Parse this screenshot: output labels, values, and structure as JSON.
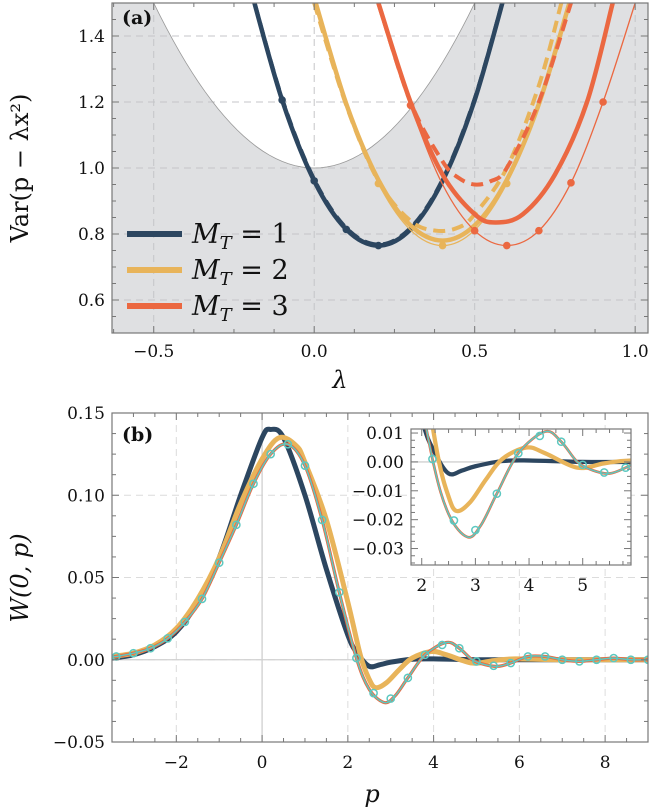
{
  "colors": {
    "mt1": "#2c4660",
    "mt2": "#e8b45a",
    "mt3": "#eb6841",
    "teal": "#5cc8c0",
    "region": "#dfe0e2"
  },
  "chart_data": [
    {
      "panel_label": "(a)",
      "type": "line",
      "xlabel": "λ",
      "ylabel": "Var(p − λx²)",
      "xlim": [
        -0.63,
        1.04
      ],
      "ylim": [
        0.5,
        1.5
      ],
      "xticks": [
        -0.5,
        0.0,
        0.5,
        1.0
      ],
      "xtick_labels": [
        "−0.5",
        "0.0",
        "0.5",
        "1.0"
      ],
      "yticks": [
        0.6,
        0.8,
        1.0,
        1.2,
        1.4
      ],
      "ytick_labels": [
        "0.6",
        "0.8",
        "1.0",
        "1.2",
        "1.4"
      ],
      "grid": true,
      "legend": {
        "placement": "left",
        "entries": [
          {
            "label": "M",
            "sub": "T",
            "rest": " = 1",
            "color_key": "mt1"
          },
          {
            "label": "M",
            "sub": "T",
            "rest": " = 2",
            "color_key": "mt2"
          },
          {
            "label": "M",
            "sub": "T",
            "rest": " = 3",
            "color_key": "mt3"
          }
        ]
      },
      "shaded_region_boundary": {
        "x": [
          -0.5,
          -0.4,
          -0.3,
          -0.2,
          -0.1,
          0,
          0.1,
          0.2,
          0.3,
          0.4,
          0.5
        ],
        "y": [
          1.5,
          1.32,
          1.18,
          1.08,
          1.02,
          1.0,
          1.02,
          1.08,
          1.18,
          1.32,
          1.5
        ]
      },
      "series": [
        {
          "color_key": "mt1",
          "style": "thick",
          "x": [
            -0.2,
            -0.1,
            0,
            0.1,
            0.2,
            0.3,
            0.4,
            0.5,
            0.6
          ],
          "y": [
            1.549,
            1.206,
            0.961,
            0.814,
            0.765,
            0.814,
            0.961,
            1.206,
            1.549
          ]
        },
        {
          "color_key": "mt1",
          "style": "dashed",
          "x": [
            -0.2,
            -0.1,
            0,
            0.1,
            0.2,
            0.3,
            0.4,
            0.5,
            0.6
          ],
          "y": [
            1.55,
            1.21,
            0.965,
            0.818,
            0.768,
            0.818,
            0.965,
            1.21,
            1.55
          ]
        },
        {
          "color_key": "mt1",
          "style": "thin-dots",
          "x": [
            -0.2,
            -0.1,
            0,
            0.1,
            0.2,
            0.3,
            0.4,
            0.5,
            0.6
          ],
          "y": [
            1.549,
            1.206,
            0.961,
            0.814,
            0.765,
            0.814,
            0.961,
            1.206,
            1.549
          ],
          "markers_x": [
            -0.1,
            0,
            0.1,
            0.2
          ]
        },
        {
          "color_key": "mt2",
          "style": "thick",
          "x": [
            0,
            0.1,
            0.2,
            0.3,
            0.4,
            0.5,
            0.6,
            0.7,
            0.8
          ],
          "y": [
            1.516,
            1.194,
            0.964,
            0.826,
            0.78,
            0.826,
            0.964,
            1.194,
            1.516
          ]
        },
        {
          "color_key": "mt2",
          "style": "dashed",
          "x": [
            0,
            0.1,
            0.2,
            0.3,
            0.38,
            0.45,
            0.5,
            0.6,
            0.7,
            0.77
          ],
          "y": [
            1.5,
            1.19,
            0.96,
            0.84,
            0.81,
            0.82,
            0.86,
            1.0,
            1.25,
            1.5
          ]
        },
        {
          "color_key": "mt2",
          "style": "thin-dots",
          "x": [
            0,
            0.1,
            0.2,
            0.3,
            0.4,
            0.5,
            0.6,
            0.7,
            0.8
          ],
          "y": [
            1.517,
            1.188,
            0.953,
            0.812,
            0.765,
            0.812,
            0.953,
            1.188,
            1.517
          ],
          "markers_x": [
            0.2,
            0.4,
            0.6
          ]
        },
        {
          "color_key": "mt3",
          "style": "thick",
          "x": [
            0.2,
            0.3,
            0.4,
            0.5,
            0.565,
            0.65,
            0.75,
            0.85,
            0.93
          ],
          "y": [
            1.5,
            1.2,
            0.98,
            0.86,
            0.835,
            0.86,
            0.98,
            1.2,
            1.5
          ]
        },
        {
          "color_key": "mt3",
          "style": "dashed",
          "x": [
            0.2,
            0.3,
            0.4,
            0.45,
            0.5,
            0.55,
            0.6,
            0.7,
            0.8
          ],
          "y": [
            1.5,
            1.2,
            1.02,
            0.97,
            0.95,
            0.96,
            1.0,
            1.2,
            1.5
          ]
        },
        {
          "color_key": "mt3",
          "style": "thin-dots",
          "x": [
            0.2,
            0.3,
            0.4,
            0.5,
            0.6,
            0.7,
            0.8,
            0.9,
            1.0
          ],
          "y": [
            1.485,
            1.19,
            0.95,
            0.81,
            0.765,
            0.81,
            0.955,
            1.2,
            1.5
          ],
          "markers_x": [
            0.3,
            0.5,
            0.6,
            0.7,
            0.8,
            0.9
          ]
        }
      ]
    },
    {
      "panel_label": "(b)",
      "type": "line",
      "xlabel": "p",
      "ylabel": "W(0, p)",
      "xlim": [
        -3.5,
        9.0
      ],
      "ylim": [
        -0.05,
        0.15
      ],
      "xticks": [
        -2,
        0,
        2,
        4,
        6,
        8
      ],
      "xtick_labels": [
        "−2",
        "0",
        "2",
        "4",
        "6",
        "8"
      ],
      "yticks": [
        -0.05,
        0.0,
        0.05,
        0.1,
        0.15
      ],
      "ytick_labels": [
        "−0.05",
        "0.00",
        "0.05",
        "0.10",
        "0.15"
      ],
      "grid": true,
      "series": [
        {
          "color_key": "mt1",
          "style": "thick",
          "x": [
            -3.5,
            -3,
            -2.5,
            -2,
            -1.5,
            -1,
            -0.5,
            0,
            0.2,
            0.5,
            1,
            1.5,
            2,
            2.25,
            2.5,
            2.75,
            3,
            3.5,
            4,
            5,
            6,
            7,
            8,
            9
          ],
          "y": [
            0.001,
            0.003,
            0.008,
            0.017,
            0.035,
            0.062,
            0.1,
            0.135,
            0.14,
            0.135,
            0.1,
            0.055,
            0.015,
            0.003,
            -0.004,
            -0.003,
            -0.0015,
            0.0003,
            0.0005,
            0,
            0,
            0,
            0,
            0
          ]
        },
        {
          "color_key": "mt2",
          "style": "thick",
          "x": [
            -3.5,
            -3,
            -2.5,
            -2,
            -1.5,
            -1,
            -0.5,
            0,
            0.4,
            0.8,
            1,
            1.5,
            2,
            2.3,
            2.5,
            2.65,
            2.9,
            3.2,
            3.5,
            3.95,
            4.3,
            4.9,
            5.4,
            5.9,
            7,
            8,
            9
          ],
          "y": [
            0.002,
            0.004,
            0.009,
            0.019,
            0.037,
            0.062,
            0.095,
            0.122,
            0.135,
            0.13,
            0.12,
            0.085,
            0.035,
            0.002,
            -0.012,
            -0.017,
            -0.014,
            -0.006,
            0.001,
            0.005,
            0.003,
            -0.002,
            -0.0005,
            0.0005,
            0,
            0,
            0
          ]
        },
        {
          "color_key": "mt3",
          "style": "medium",
          "x": [
            -3.5,
            -3.4,
            -3,
            -2.6,
            -2.2,
            -1.8,
            -1.4,
            -1,
            -0.6,
            -0.2,
            0.2,
            0.6,
            1,
            1.4,
            1.8,
            2.2,
            2.5,
            2.85,
            3.1,
            3.4,
            3.8,
            4.3,
            4.6,
            4.9,
            5.2,
            5.5,
            5.8,
            6.2,
            6.6,
            7,
            7.4,
            7.8,
            8.2,
            8.6,
            9
          ],
          "y": [
            0.002,
            0.002,
            0.004,
            0.007,
            0.013,
            0.023,
            0.037,
            0.059,
            0.082,
            0.107,
            0.125,
            0.131,
            0.118,
            0.085,
            0.041,
            0.001,
            -0.018,
            -0.026,
            -0.022,
            -0.011,
            0.003,
            0.0105,
            0.007,
            0.0,
            -0.003,
            -0.004,
            -0.002,
            0.002,
            0.002,
            0.0,
            -0.001,
            0.0,
            0.001,
            0.0,
            0.0
          ]
        },
        {
          "color_key": "teal",
          "style": "thin-circles",
          "x": [
            -3.5,
            -3.4,
            -3,
            -2.6,
            -2.2,
            -1.8,
            -1.4,
            -1,
            -0.6,
            -0.2,
            0.2,
            0.6,
            1,
            1.4,
            1.8,
            2.2,
            2.5,
            2.85,
            3.1,
            3.4,
            3.8,
            4.3,
            4.6,
            4.9,
            5.2,
            5.5,
            5.8,
            6.2,
            6.6,
            7,
            7.4,
            7.8,
            8.2,
            8.6,
            9
          ],
          "y": [
            0.002,
            0.002,
            0.004,
            0.007,
            0.013,
            0.023,
            0.037,
            0.059,
            0.082,
            0.107,
            0.125,
            0.131,
            0.118,
            0.085,
            0.041,
            0.001,
            -0.018,
            -0.026,
            -0.022,
            -0.011,
            0.003,
            0.0105,
            0.007,
            0.0,
            -0.003,
            -0.004,
            -0.002,
            0.002,
            0.002,
            0.0,
            -0.001,
            0.0,
            0.001,
            0.0,
            0.0
          ],
          "markers_x": [
            -3.4,
            -3.0,
            -2.6,
            -2.2,
            -1.8,
            -1.4,
            -1.0,
            -0.6,
            -0.2,
            0.2,
            0.6,
            1.0,
            1.4,
            1.8,
            2.2,
            2.6,
            3.0,
            3.4,
            3.8,
            4.2,
            4.6,
            5.0,
            5.4,
            5.8,
            6.2,
            6.6,
            7.0,
            7.4,
            7.8,
            8.2,
            8.6,
            9.0
          ]
        }
      ],
      "inset": {
        "xlim": [
          1.8,
          5.9
        ],
        "ylim": [
          -0.0357,
          0.0114
        ],
        "xticks": [
          2,
          3,
          4,
          5
        ],
        "xtick_labels": [
          "2",
          "3",
          "4",
          "5"
        ],
        "yticks": [
          0.01,
          0.0,
          -0.01,
          -0.02,
          -0.03
        ],
        "ytick_labels": [
          "0.01",
          "0.00",
          "−0.01",
          "−0.02",
          "−0.03"
        ]
      }
    }
  ]
}
